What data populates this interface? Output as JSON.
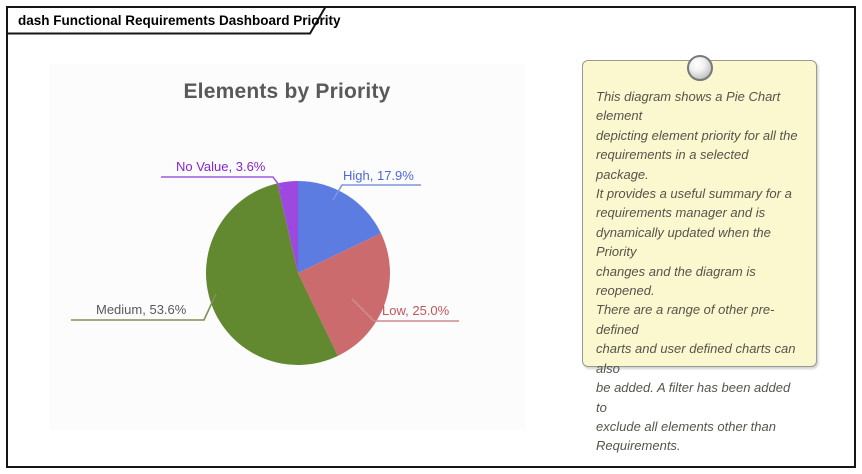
{
  "frame": {
    "tab_title": "dash Functional Requirements Dashboard Priority"
  },
  "chart_data": {
    "type": "pie",
    "title": "Elements by Priority",
    "legend": "none",
    "label_style": "callout",
    "start_angle_deg": 0,
    "direction": "clockwise",
    "slices": [
      {
        "label": "High",
        "value": 17.9,
        "display_label": "High, 17.9%",
        "color": "#5c7ce2",
        "label_color": "#4d68d8",
        "callout_color": "#8093db"
      },
      {
        "label": "Low",
        "value": 25.0,
        "display_label": "Low, 25.0%",
        "color": "#cc6b6e",
        "label_color": "#c2565c",
        "callout_color": "#d08a8d"
      },
      {
        "label": "Medium",
        "value": 53.6,
        "display_label": "Medium, 53.6%",
        "color": "#62892f",
        "label_color": "#595959",
        "callout_color": "#7c9153"
      },
      {
        "label": "No Value",
        "value": 3.6,
        "display_label": "No Value, 3.6%",
        "color": "#9d49df",
        "label_color": "#8527ce",
        "callout_color": "#a159db"
      }
    ]
  },
  "note": {
    "text": "This diagram shows a Pie Chart element\ndepicting element priority for all the\nrequirements in a selected package.\nIt provides a useful summary for a\nrequirements manager and is\ndynamically updated when the Priority\nchanges and the diagram is reopened.\nThere are a range of other pre-defined\ncharts and user defined charts can also\nbe added. A filter has been added to\nexclude all elements other than\nRequirements."
  }
}
